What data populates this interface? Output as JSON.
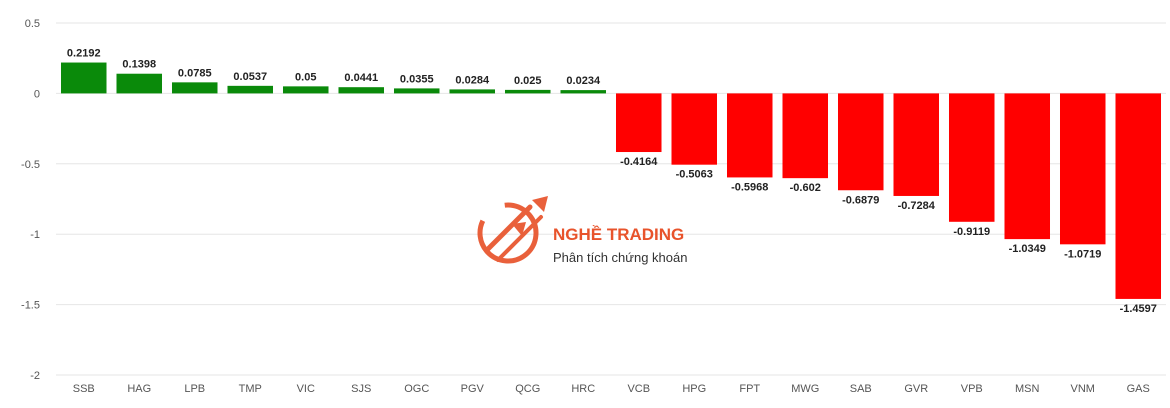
{
  "chart_data": {
    "type": "bar",
    "categories": [
      "SSB",
      "HAG",
      "LPB",
      "TMP",
      "VIC",
      "SJS",
      "OGC",
      "PGV",
      "QCG",
      "HRC",
      "VCB",
      "HPG",
      "FPT",
      "MWG",
      "SAB",
      "GVR",
      "VPB",
      "MSN",
      "VNM",
      "GAS"
    ],
    "values": [
      0.2192,
      0.1398,
      0.0785,
      0.0537,
      0.05,
      0.0441,
      0.0355,
      0.0284,
      0.025,
      0.0234,
      -0.4164,
      -0.5063,
      -0.5968,
      -0.602,
      -0.6879,
      -0.7284,
      -0.9119,
      -1.0349,
      -1.0719,
      -1.4597
    ],
    "value_labels": [
      "0.2192",
      "0.1398",
      "0.0785",
      "0.0537",
      "0.05",
      "0.0441",
      "0.0355",
      "0.0284",
      "0.025",
      "0.0234",
      "-0.4164",
      "-0.5063",
      "-0.5968",
      "-0.602",
      "-0.6879",
      "-0.7284",
      "-0.9119",
      "-1.0349",
      "-1.0719",
      "-1.4597"
    ],
    "title": "",
    "xlabel": "",
    "ylabel": "",
    "ylim": [
      -2,
      0.5
    ],
    "yticks": [
      "0.5",
      "0",
      "-0.5",
      "-1",
      "-1.5",
      "-2"
    ],
    "ytick_values": [
      0.5,
      0,
      -0.5,
      -1,
      -1.5,
      -2
    ],
    "grid": true,
    "colors": {
      "positive": "#0a8a0a",
      "negative": "#ff0000",
      "grid": "#e6e6e6"
    }
  },
  "watermark": {
    "title": "NGHỀ TRADING",
    "subtitle": "Phân tích chứng khoán",
    "color": "#e8532b"
  }
}
